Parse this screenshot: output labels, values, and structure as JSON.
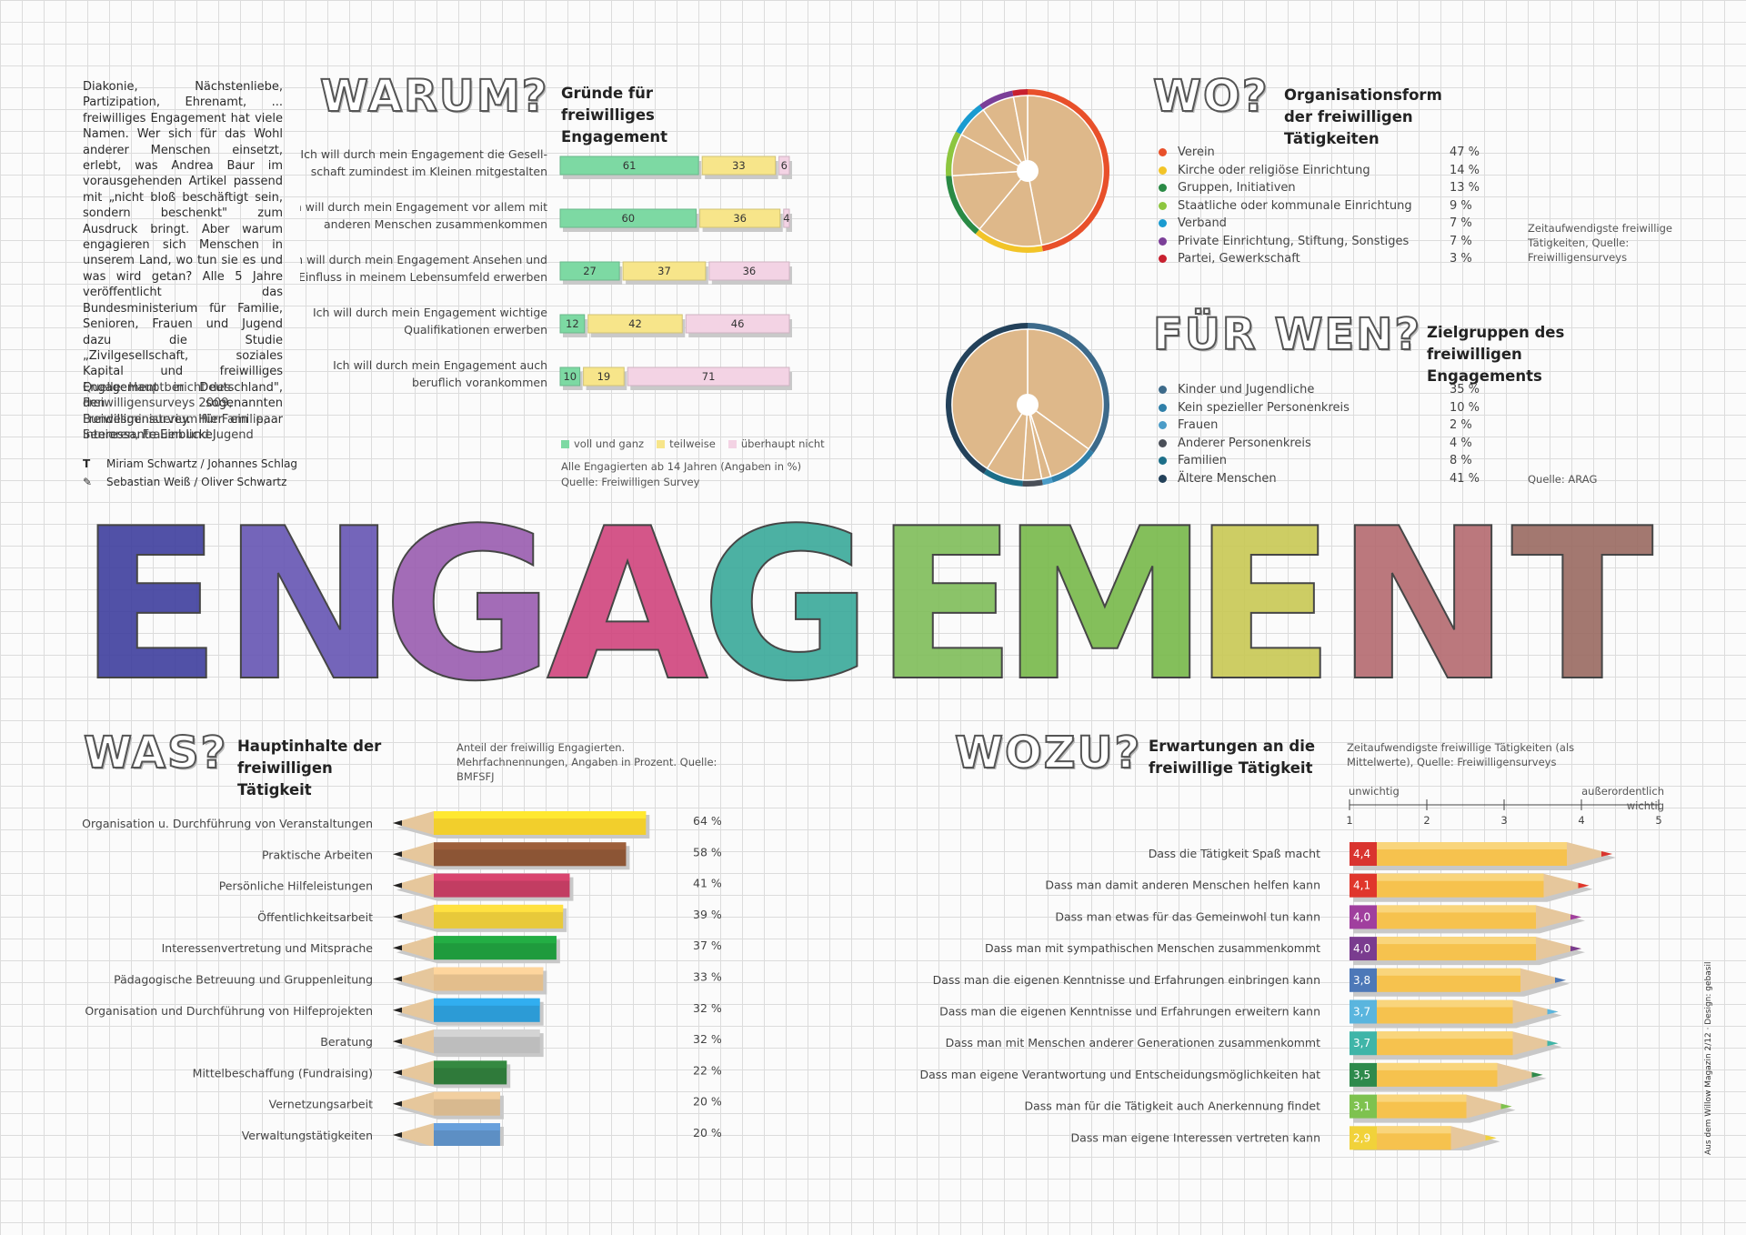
{
  "intro_text": "Diakonie, Nächstenliebe, Partizipation, Ehrenamt, ... freiwilliges Engagement hat viele Namen. Wer sich für das Wohl anderer Menschen einsetzt, erlebt, was Andrea Baur im vorausgehenden Artikel passend mit „nicht bloß beschäftigt sein, sondern beschenkt\" zum Ausdruck bringt. Aber warum engagieren sich Menschen in unserem Land, wo tun sie es und was wird getan? Alle 5 Jahre veröffentlicht das Bundesministerium für Familie, Senioren, Frauen und Jugend dazu die Studie „Zivilgesellschaft, soziales Kapital und freiwilliges Engagement in Deutschland\", den sogenannten Freiwilligensurvey. Hier ein paar interessante Einblicke.",
  "intro_source": "Quelle: Hauptbericht des Freiwilligensurveys 2009, Bundesministerium für Familie, Senioren, Frauen und Jugend",
  "credits": {
    "text_symbol": "T",
    "text_authors": "Miriam Schwartz / Johannes Schlag",
    "illus_authors": "Sebastian Weiß / Oliver Schwartz"
  },
  "headline_big": "ENGAGEMENT",
  "side_credit": "Aus dem Willow Magazin 2/12 · Design: gebasil",
  "colors": {
    "voll": "#7dd9a3",
    "teilweise": "#f7e58a",
    "nicht": "#f3d3e4",
    "eng_letters": [
      "#3f3f9e",
      "#6655b3",
      "#9a5db0",
      "#d0457d",
      "#3aa99a",
      "#7fbe5a",
      "#78b94a",
      "#c9c954",
      "#b56a70",
      "#9a6a62"
    ]
  },
  "warum": {
    "heading": "WARUM?",
    "subtitle": "Gründe für freiwilliges Engagement",
    "legend": [
      "voll und ganz",
      "teilweise",
      "überhaupt nicht"
    ],
    "note1": "Alle Engagierten ab 14 Jahren (Angaben in %)",
    "note2": "Quelle: Freiwilligen Survey",
    "chart_data": {
      "type": "bar",
      "stacked": true,
      "categories": [
        "Ich will durch mein Engagement die Gesellschaft zumindest im Kleinen mitgestalten",
        "Ich will durch mein Engagement vor allem mit anderen Menschen zusammenkommen",
        "Ich will durch mein Engagement Ansehen und Einfluss in meinem Lebensumfeld erwerben",
        "Ich will durch mein Engagement wichtige Qualifikationen erwerben",
        "Ich will durch mein Engagement auch beruflich vorankommen"
      ],
      "label_lines": [
        [
          "Ich will durch mein Engagement die Gesell-",
          "schaft zumindest im Kleinen mitgestalten"
        ],
        [
          "Ich will durch mein Engagement vor allem mit",
          "anderen Menschen zusammenkommen"
        ],
        [
          "Ich will durch mein Engagement Ansehen und",
          "Einfluss in meinem Lebensumfeld erwerben"
        ],
        [
          "Ich will durch mein Engagement wichtige",
          "Qualifikationen erwerben"
        ],
        [
          "Ich will durch mein Engagement auch",
          "beruflich vorankommen"
        ]
      ],
      "series": [
        {
          "name": "voll und ganz",
          "values": [
            61,
            60,
            27,
            12,
            10
          ]
        },
        {
          "name": "teilweise",
          "values": [
            33,
            36,
            37,
            42,
            19
          ]
        },
        {
          "name": "überhaupt nicht",
          "values": [
            6,
            4,
            36,
            46,
            71
          ]
        }
      ]
    }
  },
  "wo": {
    "heading": "WO?",
    "subtitle": "Organisationsform der freiwilligen Tätigkeiten",
    "note": "Zeitaufwendigste freiwillige Tätigkeiten, Quelle: Freiwilligensurveys",
    "chart_data": {
      "type": "pie",
      "labels": [
        "Verein",
        "Kirche oder religiöse Einrichtung",
        "Gruppen, Initiativen",
        "Staatliche oder kommunale Einrichtung",
        "Verband",
        "Private Einrichtung, Stiftung, Sonstiges",
        "Partei, Gewerkschaft"
      ],
      "values": [
        47,
        14,
        13,
        9,
        7,
        7,
        3
      ],
      "value_labels": [
        "47 %",
        "14 %",
        "13 %",
        "9 %",
        "7 %",
        "7 %",
        "3 %"
      ],
      "colors": [
        "#e8502a",
        "#f2c428",
        "#2a8a45",
        "#8dc63f",
        "#1a9bd0",
        "#7b3f98",
        "#c8202f"
      ]
    }
  },
  "fuer_wen": {
    "heading": "FÜR WEN?",
    "subtitle": "Zielgruppen des freiwilligen Engagements",
    "note": "Quelle: ARAG",
    "chart_data": {
      "type": "pie",
      "labels": [
        "Kinder und Jugendliche",
        "Kein spezieller Personenkreis",
        "Frauen",
        "Anderer Personenkreis",
        "Familien",
        "Ältere Menschen"
      ],
      "values": [
        35,
        10,
        2,
        4,
        8,
        41
      ],
      "value_labels": [
        "35 %",
        "10 %",
        "2 %",
        "4 %",
        "8 %",
        "41 %"
      ],
      "colors": [
        "#3d6a8a",
        "#2f7fa8",
        "#4b9cc7",
        "#4a4f58",
        "#1d6f89",
        "#23415a"
      ]
    }
  },
  "was": {
    "heading": "WAS?",
    "subtitle": "Hauptinhalte der freiwilligen Tätigkeit",
    "note": "Anteil der freiwillig Engagierten. Mehrfachnennungen, Angaben in Prozent. Quelle: BMFSFJ",
    "chart_data": {
      "type": "bar",
      "orientation": "horizontal",
      "categories": [
        "Organisation u. Durchführung von Veranstaltungen",
        "Praktische Arbeiten",
        "Persönliche Hilfeleistungen",
        "Öffentlichkeitsarbeit",
        "Interessenvertretung und Mitsprache",
        "Pädagogische Betreuung und Gruppenleitung",
        "Organisation und Durchführung von Hilfeprojekten",
        "Beratung",
        "Mittelbeschaffung (Fundraising)",
        "Vernetzungsarbeit",
        "Verwaltungstätigkeiten"
      ],
      "values": [
        64,
        58,
        41,
        39,
        37,
        33,
        32,
        32,
        22,
        20,
        20
      ],
      "value_labels": [
        "64 %",
        "58 %",
        "41 %",
        "39 %",
        "37 %",
        "33 %",
        "32 %",
        "32 %",
        "22 %",
        "20 %",
        "20 %"
      ],
      "colors": [
        "#f2cf2c",
        "#8c5535",
        "#c23d62",
        "#e8c93a",
        "#1f9b3d",
        "#e3be8c",
        "#2c9bd6",
        "#bdbdbd",
        "#2f7a3a",
        "#d8b98f",
        "#5d8fc4"
      ]
    }
  },
  "wozu": {
    "heading": "WOZU?",
    "subtitle": "Erwartungen an die freiwillige Tätigkeit",
    "note": "Zeitaufwendigste freiwillige Tätigkeiten (als Mittelwerte), Quelle: Freiwilligensurveys",
    "scale_low": "unwichtig",
    "scale_high": "außerordentlich wichtig",
    "chart_data": {
      "type": "bar",
      "orientation": "horizontal",
      "xlim": [
        1,
        5
      ],
      "ticks": [
        "1",
        "2",
        "3",
        "4",
        "5"
      ],
      "categories": [
        "Dass die Tätigkeit Spaß macht",
        "Dass man damit anderen Menschen helfen kann",
        "Dass man etwas für das Gemeinwohl tun kann",
        "Dass man mit sympathischen Menschen zusammenkommt",
        "Dass man die eigenen Kenntnisse und Erfahrungen einbringen kann",
        "Dass man die eigenen Kenntnisse und Erfahrungen erweitern kann",
        "Dass man mit Menschen anderer Generationen zusammenkommt",
        "Dass man eigene Verantwortung und Entscheidungsmöglichkeiten hat",
        "Dass man für die Tätigkeit auch Anerkennung findet",
        "Dass man eigene Interessen vertreten kann"
      ],
      "values": [
        4.4,
        4.1,
        4.0,
        4.0,
        3.8,
        3.7,
        3.7,
        3.5,
        3.1,
        2.9
      ],
      "value_labels": [
        "4,4",
        "4,1",
        "4,0",
        "4,0",
        "3,8",
        "3,7",
        "3,7",
        "3,5",
        "3,1",
        "2,9"
      ],
      "colors": [
        "#d9342f",
        "#e0362c",
        "#a03f9e",
        "#7a3c8f",
        "#4d78b8",
        "#5ab5de",
        "#3fb5a8",
        "#2e8a4c",
        "#7ec24f",
        "#f1d23a"
      ]
    }
  }
}
